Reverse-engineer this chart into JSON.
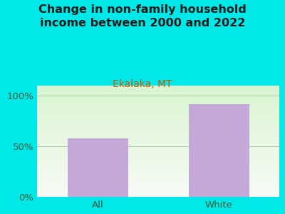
{
  "title": "Change in non-family household\nincome between 2000 and 2022",
  "subtitle": "Ekalaka, MT",
  "categories": [
    "All",
    "White"
  ],
  "values": [
    58,
    92
  ],
  "bar_color": "#c4a8d8",
  "figure_bg": "#00e8e8",
  "title_color": "#1a1a1a",
  "subtitle_color": "#cc5500",
  "tick_label_color": "#3a5a3a",
  "ylim": [
    0,
    110
  ],
  "yticks": [
    0,
    50,
    100
  ],
  "ytick_labels": [
    "0%",
    "50%",
    "100%"
  ],
  "title_fontsize": 11.5,
  "subtitle_fontsize": 10,
  "tick_fontsize": 9.5,
  "bar_width": 0.5
}
